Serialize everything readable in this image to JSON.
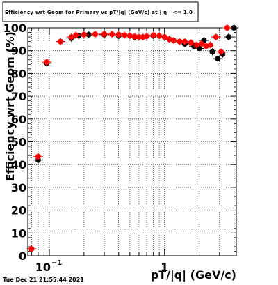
{
  "chart_data": {
    "type": "scatter",
    "title": "Efficiency wrt Geom for Primary vs pT/|q| (GeV/c) at | η | <= 1.0",
    "xlabel": "pT/|q| (GeV/c)",
    "ylabel": "Efficiency wrt Geom (%)",
    "x_scale": "log",
    "xlim": [
      0.065,
      4.2
    ],
    "ylim": [
      0,
      100
    ],
    "grid": true,
    "x_ticks": [
      {
        "value": 0.1,
        "base": "10",
        "exp": "−1"
      },
      {
        "value": 1,
        "base": "1",
        "exp": ""
      }
    ],
    "y_ticks": [
      "0",
      "10",
      "20",
      "30",
      "40",
      "50",
      "60",
      "70",
      "80",
      "90",
      "100"
    ],
    "series": [
      {
        "color": "#000000",
        "points": [
          [
            0.07,
            3
          ],
          [
            0.08,
            42
          ],
          [
            0.095,
            84.5
          ],
          [
            0.125,
            94
          ],
          [
            0.155,
            95.5
          ],
          [
            0.18,
            96.5
          ],
          [
            0.22,
            97
          ],
          [
            0.3,
            97
          ],
          [
            0.4,
            96.5
          ],
          [
            0.55,
            96
          ],
          [
            0.8,
            96.5
          ],
          [
            1.1,
            95
          ],
          [
            1.5,
            93
          ],
          [
            1.8,
            92
          ],
          [
            2.0,
            91
          ],
          [
            2.2,
            94.5
          ],
          [
            2.6,
            89.5
          ],
          [
            2.9,
            86.5
          ],
          [
            3.2,
            88.5
          ],
          [
            3.6,
            96
          ],
          [
            4.0,
            100
          ]
        ]
      },
      {
        "color": "#ff0000",
        "points": [
          [
            0.07,
            3
          ],
          [
            0.08,
            43.5
          ],
          [
            0.095,
            85
          ],
          [
            0.125,
            94
          ],
          [
            0.155,
            96
          ],
          [
            0.17,
            96.8
          ],
          [
            0.2,
            97
          ],
          [
            0.25,
            97.2
          ],
          [
            0.3,
            97.3
          ],
          [
            0.35,
            97.2
          ],
          [
            0.4,
            97
          ],
          [
            0.45,
            96.8
          ],
          [
            0.5,
            96.5
          ],
          [
            0.55,
            96.2
          ],
          [
            0.6,
            96
          ],
          [
            0.65,
            96
          ],
          [
            0.7,
            96.3
          ],
          [
            0.8,
            96.8
          ],
          [
            0.9,
            96.5
          ],
          [
            1.0,
            96
          ],
          [
            1.1,
            95
          ],
          [
            1.2,
            94.5
          ],
          [
            1.35,
            94
          ],
          [
            1.5,
            94
          ],
          [
            1.7,
            93.5
          ],
          [
            1.9,
            92.5
          ],
          [
            2.1,
            93
          ],
          [
            2.3,
            92
          ],
          [
            2.5,
            92.5
          ],
          [
            2.8,
            96
          ],
          [
            3.1,
            89.5
          ],
          [
            3.5,
            100
          ]
        ]
      }
    ]
  },
  "footer": {
    "timestamp": "Tue Dec 21 21:55:44 2021"
  }
}
